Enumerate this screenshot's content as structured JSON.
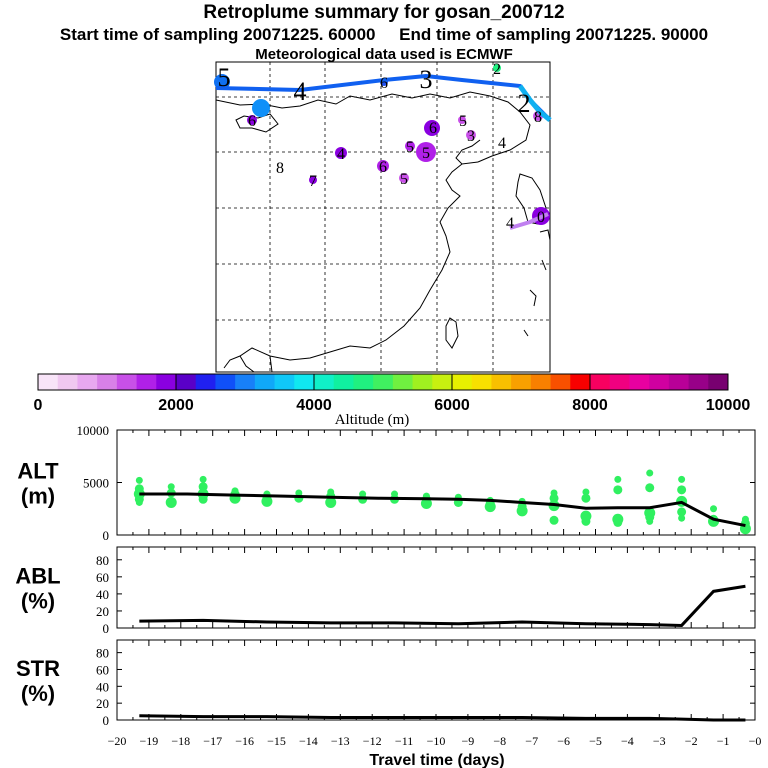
{
  "title": "Retroplume summary for gosan_200712",
  "subtitle": "Start time of sampling 20071225. 60000     End time of sampling 20071225. 90000",
  "met_line": "Meteorological data used is ECMWF",
  "colorbar": {
    "label": "Altitude  (m)",
    "ticks": [
      "0",
      "2000",
      "4000",
      "6000",
      "8000",
      "10000"
    ],
    "colors": [
      "#f8e4f8",
      "#f0c8f0",
      "#e8a8f0",
      "#d880e8",
      "#c850e8",
      "#b020e8",
      "#8a00e0",
      "#5a00c8",
      "#2020f0",
      "#1050f8",
      "#1880f8",
      "#10a8f8",
      "#10c8f8",
      "#10e8f0",
      "#10f0c8",
      "#10f0a0",
      "#20f080",
      "#40f060",
      "#70f040",
      "#a0f020",
      "#c8f010",
      "#e8f000",
      "#f8e000",
      "#f8c000",
      "#f8a000",
      "#f88000",
      "#f85000",
      "#f80000",
      "#f80060",
      "#f00080",
      "#e800a0",
      "#d000a0",
      "#b80098",
      "#980088",
      "#780070"
    ]
  },
  "map": {
    "labels": [
      {
        "text": "5",
        "size": "big"
      },
      {
        "text": "4",
        "size": "big"
      },
      {
        "text": "3",
        "size": "big"
      },
      {
        "text": "2",
        "size": "big"
      },
      {
        "text": "6",
        "size": "small"
      },
      {
        "text": "2",
        "size": "small"
      },
      {
        "text": "5",
        "size": "small"
      },
      {
        "text": "6",
        "size": "small"
      },
      {
        "text": "5",
        "size": "small"
      },
      {
        "text": "8",
        "size": "small"
      },
      {
        "text": "3",
        "size": "small"
      },
      {
        "text": "8",
        "size": "small"
      },
      {
        "text": "7",
        "size": "small"
      },
      {
        "text": "4",
        "size": "small"
      },
      {
        "text": "6",
        "size": "small"
      },
      {
        "text": "5",
        "size": "small"
      },
      {
        "text": "6",
        "size": "small"
      },
      {
        "text": "4",
        "size": "small"
      },
      {
        "text": "5",
        "size": "small"
      },
      {
        "text": "4",
        "size": "small"
      },
      {
        "text": "0",
        "size": "small"
      }
    ],
    "colors": {
      "plume_line": "#1060f0",
      "plume_near": "#10b0f0"
    }
  },
  "chart_data": [
    {
      "type": "line",
      "name": "ALT",
      "ylabel": "ALT\n(m)",
      "ylabel_lines": [
        "ALT",
        "(m)"
      ],
      "ylim": [
        0,
        10000
      ],
      "yticks": [
        "10000",
        "5000",
        "0"
      ],
      "xlim": [
        -20,
        0
      ],
      "x": [
        -19.3,
        -17.8,
        -16.3,
        -14.8,
        -13.3,
        -11.8,
        -10.3,
        -9.3,
        -8.3,
        -7.3,
        -6.3,
        -5.3,
        -4.3,
        -3.8,
        -3.3,
        -2.8,
        -2.3,
        -1.3,
        -0.3
      ],
      "values": [
        3900,
        3900,
        3800,
        3700,
        3600,
        3500,
        3450,
        3400,
        3300,
        3100,
        2900,
        2550,
        2600,
        2600,
        2600,
        2850,
        3100,
        1500,
        900
      ],
      "scatter_color": "#30f060",
      "scatter": [
        {
          "x": -19.3,
          "y": [
            5200,
            4400,
            3900,
            3400,
            3100
          ]
        },
        {
          "x": -18.3,
          "y": [
            4600,
            4000,
            3100
          ]
        },
        {
          "x": -17.3,
          "y": [
            5300,
            4600,
            3900,
            3400
          ]
        },
        {
          "x": -16.3,
          "y": [
            4200,
            3900,
            3500
          ]
        },
        {
          "x": -15.3,
          "y": [
            3900,
            3600,
            3200
          ]
        },
        {
          "x": -14.3,
          "y": [
            4000,
            3500
          ]
        },
        {
          "x": -13.3,
          "y": [
            4100,
            3700,
            3100
          ]
        },
        {
          "x": -12.3,
          "y": [
            3900,
            3400
          ]
        },
        {
          "x": -11.3,
          "y": [
            3900,
            3400
          ]
        },
        {
          "x": -10.3,
          "y": [
            3700,
            3400,
            3000
          ]
        },
        {
          "x": -9.3,
          "y": [
            3600,
            3100
          ]
        },
        {
          "x": -8.3,
          "y": [
            3300,
            3000,
            2700
          ]
        },
        {
          "x": -7.3,
          "y": [
            3200,
            2700,
            2300
          ]
        },
        {
          "x": -6.3,
          "y": [
            4000,
            3500,
            2800,
            1400
          ]
        },
        {
          "x": -5.3,
          "y": [
            4100,
            3500,
            1800,
            1300
          ]
        },
        {
          "x": -4.3,
          "y": [
            5300,
            4300,
            1500,
            1200
          ]
        },
        {
          "x": -3.3,
          "y": [
            5900,
            4500,
            2100,
            1700,
            1300
          ]
        },
        {
          "x": -2.3,
          "y": [
            5300,
            4300,
            3200,
            2200,
            1600
          ]
        },
        {
          "x": -1.3,
          "y": [
            2500,
            1500,
            1300
          ]
        },
        {
          "x": -0.3,
          "y": [
            1500,
            1100,
            600
          ]
        }
      ]
    },
    {
      "type": "line",
      "name": "ABL",
      "ylabel": "ABL\n(%)",
      "ylabel_lines": [
        "ABL",
        "(%)"
      ],
      "ylim": [
        0,
        95
      ],
      "yticks": [
        "80",
        "60",
        "40",
        "20",
        "0"
      ],
      "xlim": [
        -20,
        0
      ],
      "x": [
        -19.3,
        -17.3,
        -15.3,
        -13.3,
        -11.3,
        -9.3,
        -7.3,
        -5.3,
        -3.3,
        -2.3,
        -1.3,
        -0.3
      ],
      "values": [
        8,
        9,
        7,
        6,
        6,
        5,
        7,
        5,
        4,
        3,
        43,
        49
      ]
    },
    {
      "type": "line",
      "name": "STR",
      "ylabel": "STR\n(%)",
      "ylabel_lines": [
        "STR",
        "(%)"
      ],
      "ylim": [
        0,
        95
      ],
      "yticks": [
        "80",
        "60",
        "40",
        "20",
        "0"
      ],
      "xlim": [
        -20,
        0
      ],
      "x": [
        -19.3,
        -17.3,
        -15.3,
        -13.3,
        -11.3,
        -9.3,
        -7.3,
        -5.3,
        -3.3,
        -2.3,
        -1.3,
        -0.3
      ],
      "values": [
        5,
        4,
        4,
        3,
        3,
        3,
        3,
        2,
        2,
        1,
        0,
        0
      ],
      "xticks": [
        "−20",
        "−19",
        "−18",
        "−17",
        "−16",
        "−15",
        "−14",
        "−13",
        "−12",
        "−11",
        "−10",
        "−9",
        "−8",
        "−7",
        "−6",
        "−5",
        "−4",
        "−3",
        "−2",
        "−1",
        "−0"
      ],
      "xlabel": "Travel time (days)"
    }
  ]
}
